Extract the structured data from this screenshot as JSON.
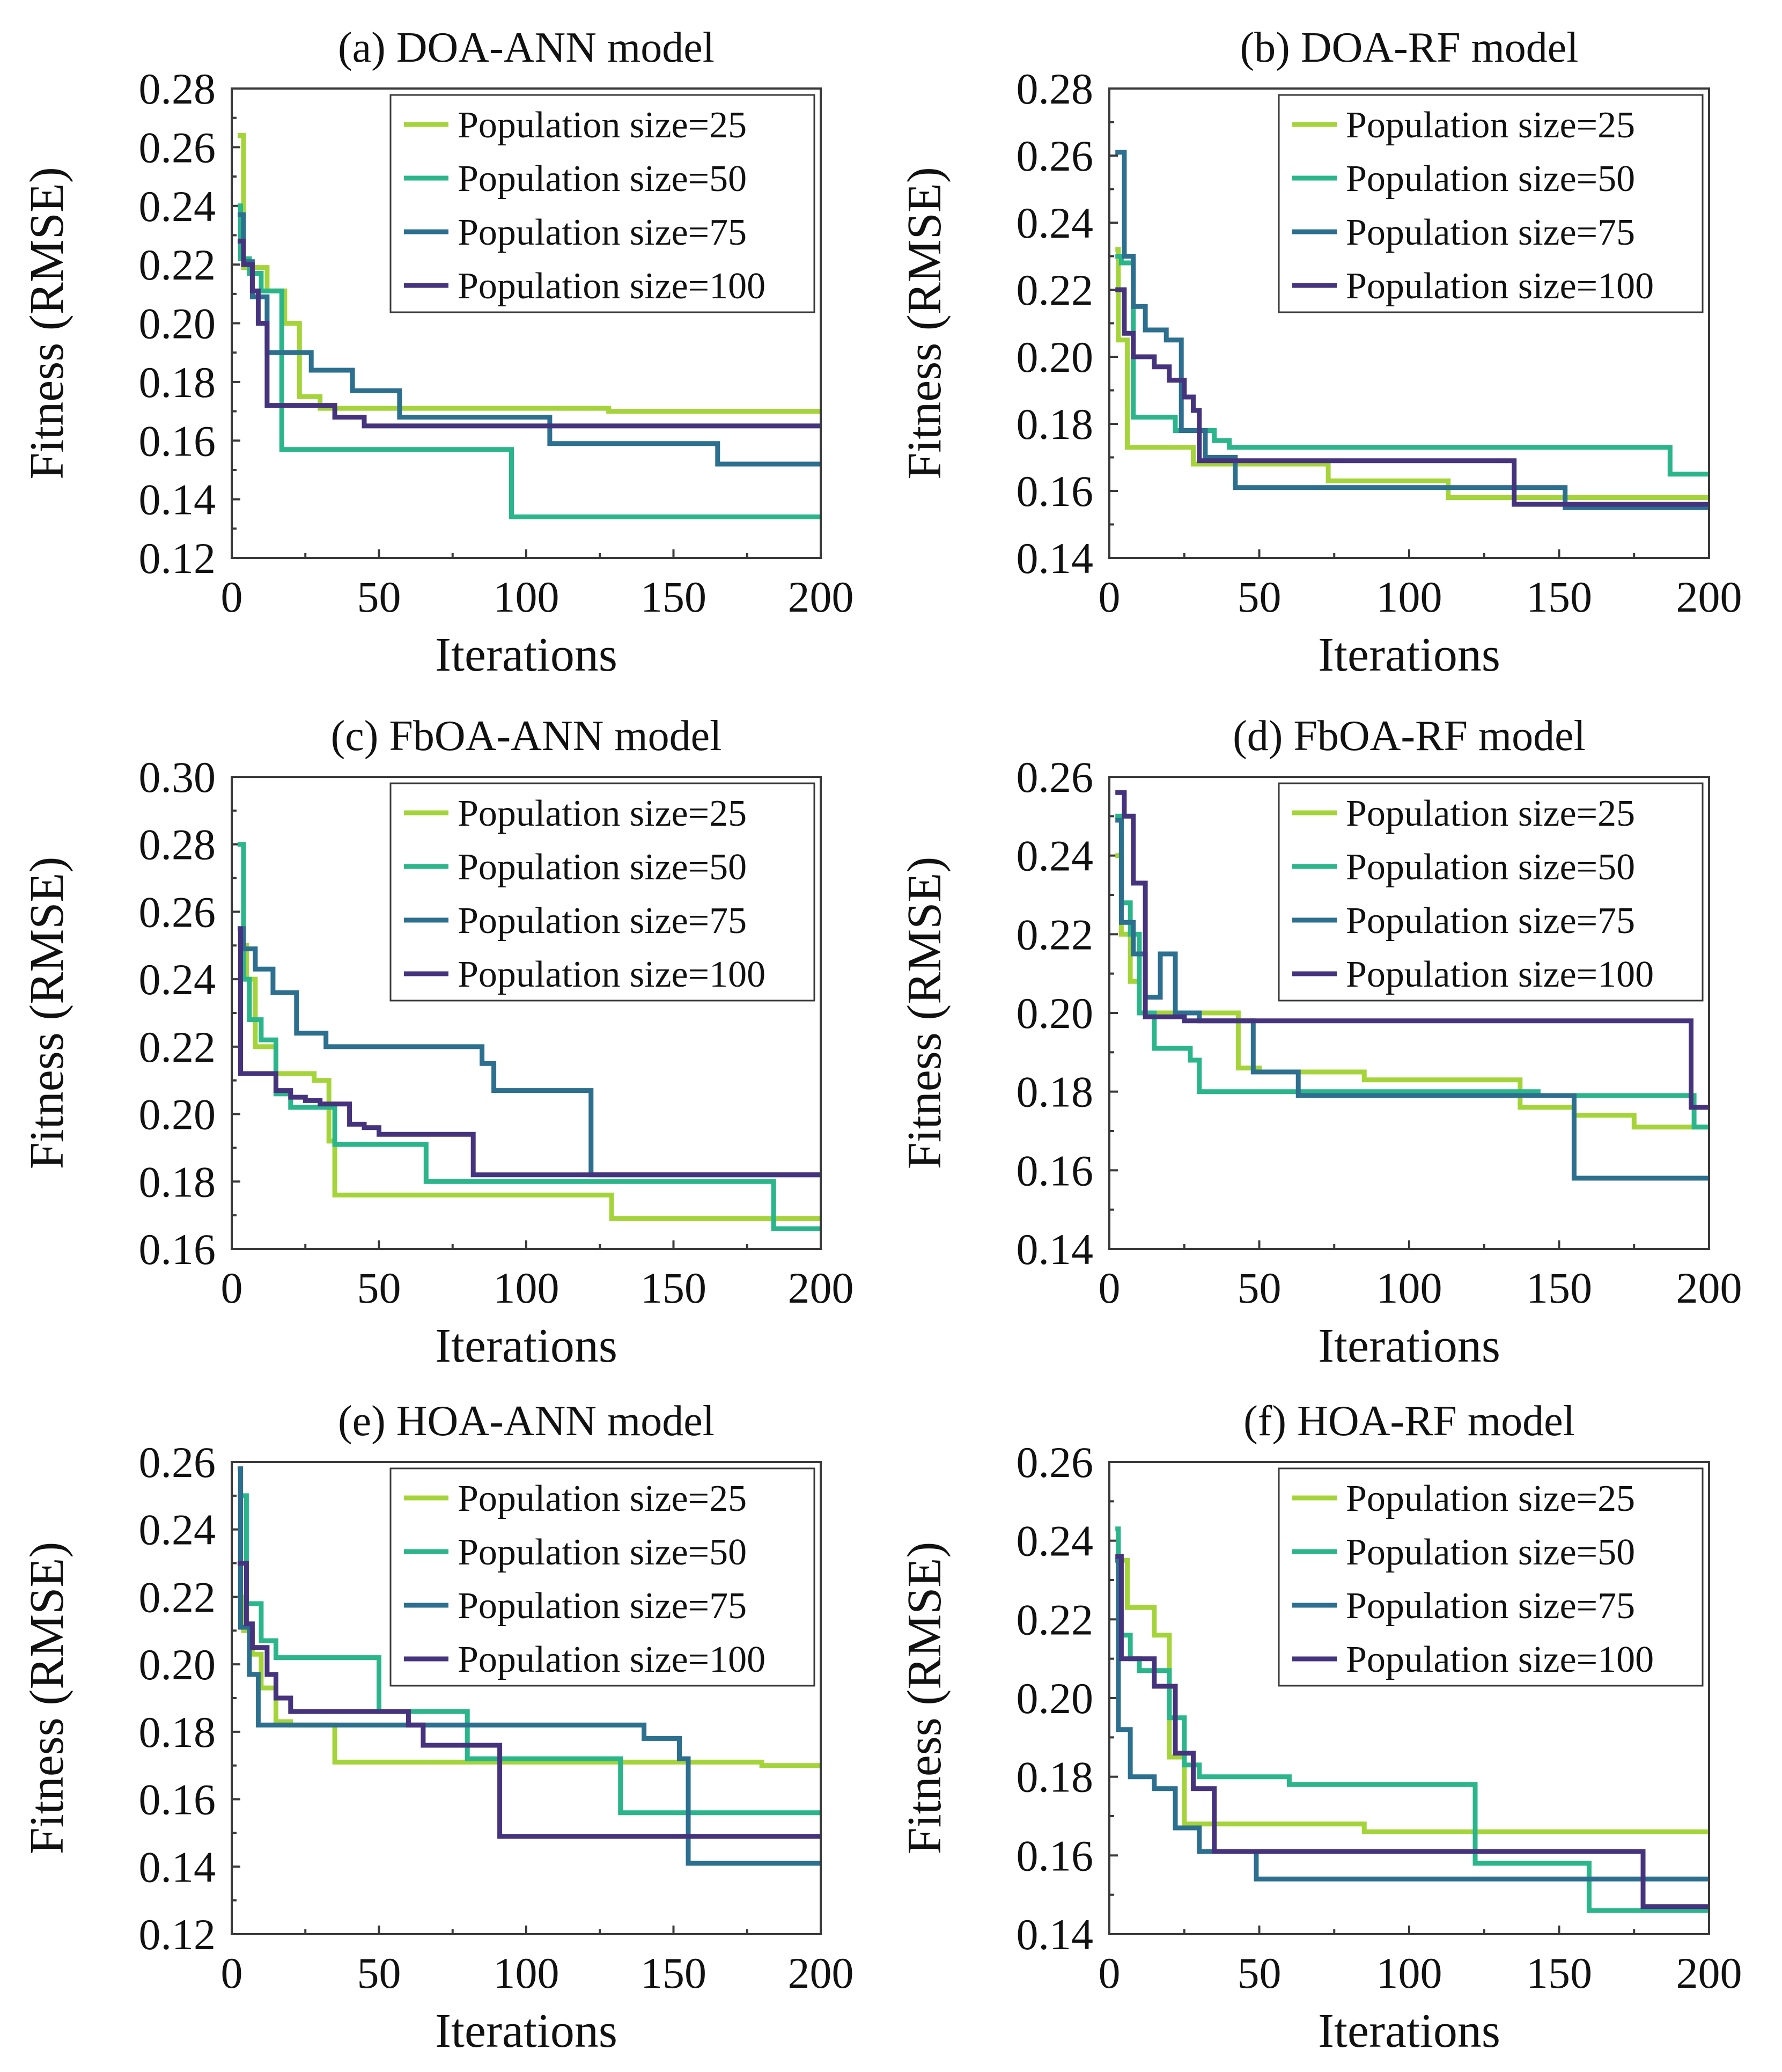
{
  "legend_labels": [
    "Population size=25",
    "Population size=50",
    "Population size=75",
    "Population size=100"
  ],
  "series_colors": [
    "#a5d43a",
    "#2bb58b",
    "#2c6f8f",
    "#46337e"
  ],
  "chart_data": [
    {
      "type": "line",
      "id": "a",
      "title": "(a) DOA-ANN model",
      "xlabel": "Iterations",
      "ylabel": "Fitness (RMSE)",
      "xlim": [
        0,
        200
      ],
      "ylim": [
        0.12,
        0.28
      ],
      "xticks": [
        0,
        50,
        100,
        150,
        200
      ],
      "yticks": [
        0.12,
        0.14,
        0.16,
        0.18,
        0.2,
        0.22,
        0.24,
        0.26,
        0.28
      ],
      "legend": "top-right",
      "series": [
        {
          "name": "Population size=25",
          "x": [
            2,
            4,
            4,
            12,
            12,
            18,
            18,
            23,
            23,
            30,
            30,
            128,
            128,
            200
          ],
          "y": [
            0.264,
            0.264,
            0.219,
            0.219,
            0.211,
            0.211,
            0.2,
            0.2,
            0.175,
            0.175,
            0.171,
            0.171,
            0.17,
            0.17
          ]
        },
        {
          "name": "Population size=50",
          "x": [
            2,
            3,
            3,
            6,
            6,
            10,
            10,
            17,
            17,
            95,
            95,
            200
          ],
          "y": [
            0.24,
            0.24,
            0.222,
            0.222,
            0.217,
            0.217,
            0.211,
            0.211,
            0.157,
            0.157,
            0.134,
            0.134
          ]
        },
        {
          "name": "Population size=75",
          "x": [
            2,
            4,
            4,
            7,
            7,
            12,
            12,
            27,
            27,
            41,
            41,
            57,
            57,
            108,
            108,
            165,
            165,
            200
          ],
          "y": [
            0.237,
            0.237,
            0.221,
            0.221,
            0.209,
            0.209,
            0.19,
            0.19,
            0.184,
            0.184,
            0.177,
            0.177,
            0.168,
            0.168,
            0.159,
            0.159,
            0.152,
            0.152
          ]
        },
        {
          "name": "Population size=100",
          "x": [
            2,
            4,
            4,
            7,
            7,
            9,
            9,
            12,
            12,
            35,
            35,
            45,
            45,
            200
          ],
          "y": [
            0.228,
            0.228,
            0.22,
            0.22,
            0.211,
            0.211,
            0.2,
            0.2,
            0.172,
            0.172,
            0.168,
            0.168,
            0.165,
            0.165
          ]
        }
      ]
    },
    {
      "type": "line",
      "id": "b",
      "title": "(b) DOA-RF model",
      "xlabel": "Iterations",
      "ylabel": "Fitness (RMSE)",
      "xlim": [
        0,
        200
      ],
      "ylim": [
        0.14,
        0.28
      ],
      "xticks": [
        0,
        50,
        100,
        150,
        200
      ],
      "yticks": [
        0.14,
        0.16,
        0.18,
        0.2,
        0.22,
        0.24,
        0.26,
        0.28
      ],
      "legend": "top-right",
      "series": [
        {
          "name": "Population size=25",
          "x": [
            2,
            3,
            3,
            6,
            6,
            28,
            28,
            73,
            73,
            113,
            113,
            200
          ],
          "y": [
            0.232,
            0.232,
            0.205,
            0.205,
            0.173,
            0.173,
            0.168,
            0.168,
            0.163,
            0.163,
            0.158,
            0.158
          ]
        },
        {
          "name": "Population size=50",
          "x": [
            2,
            4,
            4,
            8,
            8,
            22,
            22,
            35,
            35,
            40,
            40,
            187,
            187,
            200
          ],
          "y": [
            0.23,
            0.23,
            0.228,
            0.228,
            0.182,
            0.182,
            0.178,
            0.178,
            0.175,
            0.175,
            0.173,
            0.173,
            0.165,
            0.165
          ]
        },
        {
          "name": "Population size=75",
          "x": [
            2,
            5,
            5,
            8,
            8,
            12,
            12,
            19,
            19,
            24,
            24,
            32,
            32,
            42,
            42,
            130,
            130,
            152,
            152,
            200
          ],
          "y": [
            0.261,
            0.261,
            0.23,
            0.23,
            0.215,
            0.215,
            0.208,
            0.208,
            0.205,
            0.205,
            0.178,
            0.178,
            0.17,
            0.17,
            0.161,
            0.161,
            0.161,
            0.161,
            0.155,
            0.155
          ]
        },
        {
          "name": "Population size=100",
          "x": [
            2,
            5,
            5,
            8,
            8,
            15,
            15,
            20,
            20,
            25,
            25,
            28,
            28,
            30,
            30,
            135,
            135,
            200
          ],
          "y": [
            0.22,
            0.22,
            0.207,
            0.207,
            0.2,
            0.2,
            0.197,
            0.197,
            0.193,
            0.193,
            0.188,
            0.188,
            0.184,
            0.184,
            0.169,
            0.169,
            0.156,
            0.156
          ]
        }
      ]
    },
    {
      "type": "line",
      "id": "c",
      "title": "(c) FbOA-ANN model",
      "xlabel": "Iterations",
      "ylabel": "Fitness (RMSE)",
      "xlim": [
        0,
        200
      ],
      "ylim": [
        0.16,
        0.3
      ],
      "xticks": [
        0,
        50,
        100,
        150,
        200
      ],
      "yticks": [
        0.16,
        0.18,
        0.2,
        0.22,
        0.24,
        0.26,
        0.28,
        0.3
      ],
      "legend": "top-right",
      "series": [
        {
          "name": "Population size=25",
          "x": [
            2,
            5,
            5,
            8,
            8,
            15,
            15,
            28,
            28,
            33,
            33,
            35,
            35,
            129,
            129,
            200
          ],
          "y": [
            0.25,
            0.25,
            0.24,
            0.24,
            0.22,
            0.22,
            0.212,
            0.212,
            0.21,
            0.21,
            0.192,
            0.192,
            0.176,
            0.176,
            0.169,
            0.169
          ]
        },
        {
          "name": "Population size=50",
          "x": [
            2,
            4,
            4,
            6,
            6,
            10,
            10,
            15,
            15,
            20,
            20,
            35,
            35,
            66,
            66,
            184,
            184,
            200
          ],
          "y": [
            0.28,
            0.28,
            0.24,
            0.24,
            0.228,
            0.228,
            0.222,
            0.222,
            0.206,
            0.206,
            0.202,
            0.202,
            0.191,
            0.191,
            0.18,
            0.18,
            0.166,
            0.166
          ]
        },
        {
          "name": "Population size=75",
          "x": [
            2,
            4,
            4,
            8,
            8,
            14,
            14,
            22,
            22,
            32,
            32,
            85,
            85,
            89,
            89,
            122,
            122,
            200
          ],
          "y": [
            0.255,
            0.255,
            0.249,
            0.249,
            0.243,
            0.243,
            0.236,
            0.236,
            0.224,
            0.224,
            0.22,
            0.22,
            0.215,
            0.215,
            0.207,
            0.207,
            0.182,
            0.182
          ]
        },
        {
          "name": "Population size=100",
          "x": [
            2,
            3,
            3,
            15,
            15,
            20,
            20,
            25,
            25,
            30,
            30,
            40,
            40,
            45,
            45,
            50,
            50,
            82,
            82,
            200
          ],
          "y": [
            0.255,
            0.255,
            0.212,
            0.212,
            0.207,
            0.207,
            0.205,
            0.205,
            0.204,
            0.204,
            0.203,
            0.203,
            0.197,
            0.197,
            0.196,
            0.196,
            0.194,
            0.194,
            0.182,
            0.182
          ]
        }
      ]
    },
    {
      "type": "line",
      "id": "d",
      "title": "(d) FbOA-RF model",
      "xlabel": "Iterations",
      "ylabel": "Fitness (RMSE)",
      "xlim": [
        0,
        200
      ],
      "ylim": [
        0.14,
        0.26
      ],
      "xticks": [
        0,
        50,
        100,
        150,
        200
      ],
      "yticks": [
        0.14,
        0.16,
        0.18,
        0.2,
        0.22,
        0.24,
        0.26
      ],
      "legend": "top-right",
      "series": [
        {
          "name": "Population size=25",
          "x": [
            2,
            4,
            4,
            7,
            7,
            10,
            10,
            43,
            43,
            50,
            50,
            85,
            85,
            137,
            137,
            155,
            155,
            175,
            175,
            200
          ],
          "y": [
            0.24,
            0.24,
            0.22,
            0.22,
            0.208,
            0.208,
            0.2,
            0.2,
            0.186,
            0.186,
            0.185,
            0.185,
            0.183,
            0.183,
            0.176,
            0.176,
            0.174,
            0.174,
            0.171,
            0.171
          ]
        },
        {
          "name": "Population size=50",
          "x": [
            2,
            4,
            4,
            7,
            7,
            10,
            10,
            15,
            15,
            27,
            27,
            30,
            30,
            143,
            143,
            195,
            195,
            200
          ],
          "y": [
            0.25,
            0.25,
            0.228,
            0.228,
            0.22,
            0.22,
            0.2,
            0.2,
            0.191,
            0.191,
            0.188,
            0.188,
            0.18,
            0.18,
            0.179,
            0.179,
            0.171,
            0.171
          ]
        },
        {
          "name": "Population size=75",
          "x": [
            2,
            4,
            4,
            8,
            8,
            12,
            12,
            17,
            17,
            22,
            22,
            30,
            30,
            48,
            48,
            63,
            63,
            155,
            155,
            200
          ],
          "y": [
            0.249,
            0.249,
            0.223,
            0.223,
            0.215,
            0.215,
            0.204,
            0.204,
            0.215,
            0.215,
            0.2,
            0.2,
            0.198,
            0.198,
            0.185,
            0.185,
            0.179,
            0.179,
            0.158,
            0.158
          ]
        },
        {
          "name": "Population size=100",
          "x": [
            2,
            5,
            5,
            8,
            8,
            12,
            12,
            25,
            25,
            194,
            194,
            200
          ],
          "y": [
            0.256,
            0.256,
            0.25,
            0.25,
            0.233,
            0.233,
            0.199,
            0.199,
            0.198,
            0.198,
            0.176,
            0.176
          ]
        }
      ]
    },
    {
      "type": "line",
      "id": "e",
      "title": "(e) HOA-ANN model",
      "xlabel": "Iterations",
      "ylabel": "Fitness (RMSE)",
      "xlim": [
        0,
        200
      ],
      "ylim": [
        0.12,
        0.26
      ],
      "xticks": [
        0,
        50,
        100,
        150,
        200
      ],
      "yticks": [
        0.12,
        0.14,
        0.16,
        0.18,
        0.2,
        0.22,
        0.24,
        0.26
      ],
      "legend": "top-right",
      "series": [
        {
          "name": "Population size=25",
          "x": [
            2,
            4,
            4,
            7,
            7,
            10,
            10,
            15,
            15,
            20,
            20,
            35,
            35,
            180,
            180,
            200
          ],
          "y": [
            0.22,
            0.22,
            0.21,
            0.21,
            0.203,
            0.203,
            0.193,
            0.193,
            0.183,
            0.183,
            0.182,
            0.182,
            0.171,
            0.171,
            0.17,
            0.17
          ]
        },
        {
          "name": "Population size=50",
          "x": [
            2,
            5,
            5,
            10,
            10,
            15,
            15,
            50,
            50,
            80,
            80,
            132,
            132,
            200
          ],
          "y": [
            0.25,
            0.25,
            0.218,
            0.218,
            0.207,
            0.207,
            0.202,
            0.202,
            0.186,
            0.186,
            0.172,
            0.172,
            0.156,
            0.156
          ]
        },
        {
          "name": "Population size=75",
          "x": [
            2,
            3,
            3,
            6,
            6,
            9,
            9,
            140,
            140,
            152,
            152,
            155,
            155,
            200
          ],
          "y": [
            0.258,
            0.258,
            0.211,
            0.211,
            0.197,
            0.197,
            0.182,
            0.182,
            0.178,
            0.178,
            0.172,
            0.172,
            0.141,
            0.141
          ]
        },
        {
          "name": "Population size=100",
          "x": [
            2,
            5,
            5,
            7,
            7,
            12,
            12,
            15,
            15,
            20,
            20,
            60,
            60,
            65,
            65,
            91,
            91,
            200
          ],
          "y": [
            0.23,
            0.23,
            0.212,
            0.212,
            0.205,
            0.205,
            0.197,
            0.197,
            0.19,
            0.19,
            0.186,
            0.186,
            0.182,
            0.182,
            0.176,
            0.176,
            0.149,
            0.149
          ]
        }
      ]
    },
    {
      "type": "line",
      "id": "f",
      "title": "(f) HOA-RF model",
      "xlabel": "Iterations",
      "ylabel": "Fitness (RMSE)",
      "xlim": [
        0,
        200
      ],
      "ylim": [
        0.14,
        0.26
      ],
      "xticks": [
        0,
        50,
        100,
        150,
        200
      ],
      "yticks": [
        0.14,
        0.16,
        0.18,
        0.2,
        0.22,
        0.24,
        0.26
      ],
      "legend": "top-right",
      "series": [
        {
          "name": "Population size=25",
          "x": [
            2,
            6,
            6,
            15,
            15,
            20,
            20,
            25,
            25,
            85,
            85,
            200
          ],
          "y": [
            0.235,
            0.235,
            0.223,
            0.223,
            0.216,
            0.216,
            0.185,
            0.185,
            0.168,
            0.168,
            0.166,
            0.166
          ]
        },
        {
          "name": "Population size=50",
          "x": [
            2,
            3,
            3,
            7,
            7,
            10,
            10,
            20,
            20,
            25,
            25,
            30,
            30,
            60,
            60,
            122,
            122,
            160,
            160,
            200
          ],
          "y": [
            0.243,
            0.243,
            0.216,
            0.216,
            0.21,
            0.21,
            0.207,
            0.207,
            0.195,
            0.195,
            0.183,
            0.183,
            0.18,
            0.18,
            0.178,
            0.178,
            0.158,
            0.158,
            0.146,
            0.146
          ]
        },
        {
          "name": "Population size=75",
          "x": [
            2,
            3,
            3,
            7,
            7,
            15,
            15,
            22,
            22,
            30,
            30,
            49,
            49,
            200
          ],
          "y": [
            0.235,
            0.235,
            0.192,
            0.192,
            0.18,
            0.18,
            0.177,
            0.177,
            0.167,
            0.167,
            0.161,
            0.161,
            0.154,
            0.154
          ]
        },
        {
          "name": "Population size=100",
          "x": [
            2,
            4,
            4,
            15,
            15,
            22,
            22,
            28,
            28,
            35,
            35,
            40,
            40,
            178,
            178,
            200
          ],
          "y": [
            0.236,
            0.236,
            0.21,
            0.21,
            0.203,
            0.203,
            0.186,
            0.186,
            0.177,
            0.177,
            0.161,
            0.161,
            0.161,
            0.161,
            0.147,
            0.147
          ]
        }
      ]
    }
  ]
}
